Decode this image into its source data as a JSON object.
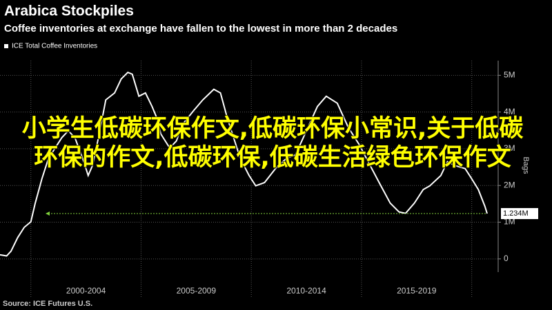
{
  "chart_data": {
    "type": "line",
    "title": "Arabica Stockpiles",
    "subtitle": "Coffee inventories at exchange have fallen to the lowest in more than 2 decades",
    "y_label": "Bags",
    "source": "Source: ICE Futures U.S.",
    "overlay_text": "小学生低碳环保作文,低碳环保小常识,关于低碳环保的作文,低碳环保,低碳生活绿色环保作文",
    "x": [
      1998.6,
      1998.9,
      1999.1,
      1999.4,
      1999.7,
      2000.0,
      2000.2,
      2000.5,
      2000.8,
      2001.1,
      2001.4,
      2001.7,
      2002.0,
      2002.4,
      2002.6,
      2002.8,
      2003.1,
      2003.4,
      2003.8,
      2004.1,
      2004.4,
      2004.6,
      2004.9,
      2005.2,
      2005.5,
      2005.7,
      2005.9,
      2006.3,
      2006.6,
      2006.9,
      2007.4,
      2007.8,
      2008.3,
      2008.6,
      2008.9,
      2009.2,
      2009.5,
      2009.9,
      2010.2,
      2010.6,
      2011.1,
      2011.6,
      2012.0,
      2012.5,
      2013.0,
      2013.4,
      2013.9,
      2014.4,
      2014.9,
      2015.3,
      2015.8,
      2016.3,
      2016.7,
      2017.0,
      2017.4,
      2017.8,
      2018.1,
      2018.6,
      2018.9,
      2019.2,
      2019.7,
      2020.0,
      2020.3,
      2020.6,
      2020.7
    ],
    "series": [
      {
        "name": "ICE Total Coffee Inventories",
        "color": "#ffffff",
        "values": [
          110000,
          80000,
          210000,
          580000,
          860000,
          1010000,
          1520000,
          2180000,
          2740000,
          3020000,
          3300000,
          3490000,
          3300000,
          2650000,
          2270000,
          2550000,
          3400000,
          4330000,
          4520000,
          4900000,
          5080000,
          5030000,
          4430000,
          4520000,
          4150000,
          3860000,
          3400000,
          3020000,
          3210000,
          3680000,
          4050000,
          4330000,
          4620000,
          4520000,
          3860000,
          3300000,
          2740000,
          2270000,
          1990000,
          2080000,
          2460000,
          2740000,
          2830000,
          3490000,
          4150000,
          4430000,
          4240000,
          3580000,
          3110000,
          2650000,
          2080000,
          1520000,
          1280000,
          1240000,
          1520000,
          1890000,
          1990000,
          2270000,
          2650000,
          2550000,
          2460000,
          2180000,
          1890000,
          1430000,
          1234000
        ],
        "value_labels": [
          null,
          null,
          null,
          null,
          null,
          null,
          null,
          null,
          null,
          null,
          null,
          null,
          null,
          null,
          null,
          null,
          null,
          null,
          null,
          null,
          null,
          null,
          null,
          null,
          null,
          null,
          null,
          null,
          null,
          null,
          null,
          null,
          null,
          null,
          null,
          null,
          null,
          null,
          null,
          null,
          null,
          null,
          null,
          null,
          null,
          null,
          null,
          null,
          null,
          null,
          null,
          null,
          null,
          null,
          null,
          null,
          null,
          null,
          null,
          null,
          null,
          null,
          null,
          null,
          "1.234M"
        ]
      }
    ],
    "xlim": [
      1998.6,
      2021.2
    ],
    "xticks": [
      {
        "value": 2002.5,
        "label": "2000-2004"
      },
      {
        "value": 2007.5,
        "label": "2005-2009"
      },
      {
        "value": 2012.5,
        "label": "2010-2014"
      },
      {
        "value": 2017.5,
        "label": "2015-2019"
      }
    ],
    "xgrid": [
      2000,
      2005,
      2010,
      2015,
      2020
    ],
    "ylim": [
      -360000,
      5400000
    ],
    "yticks": [
      0,
      {
        "value": 1000000,
        "label": "1M"
      },
      {
        "value": 2000000,
        "label": "2M"
      },
      {
        "value": 3000000,
        "label": "3M"
      },
      {
        "value": 4000000,
        "label": "4M"
      },
      {
        "value": 5000000,
        "label": "5M"
      }
    ],
    "grid": true
  }
}
